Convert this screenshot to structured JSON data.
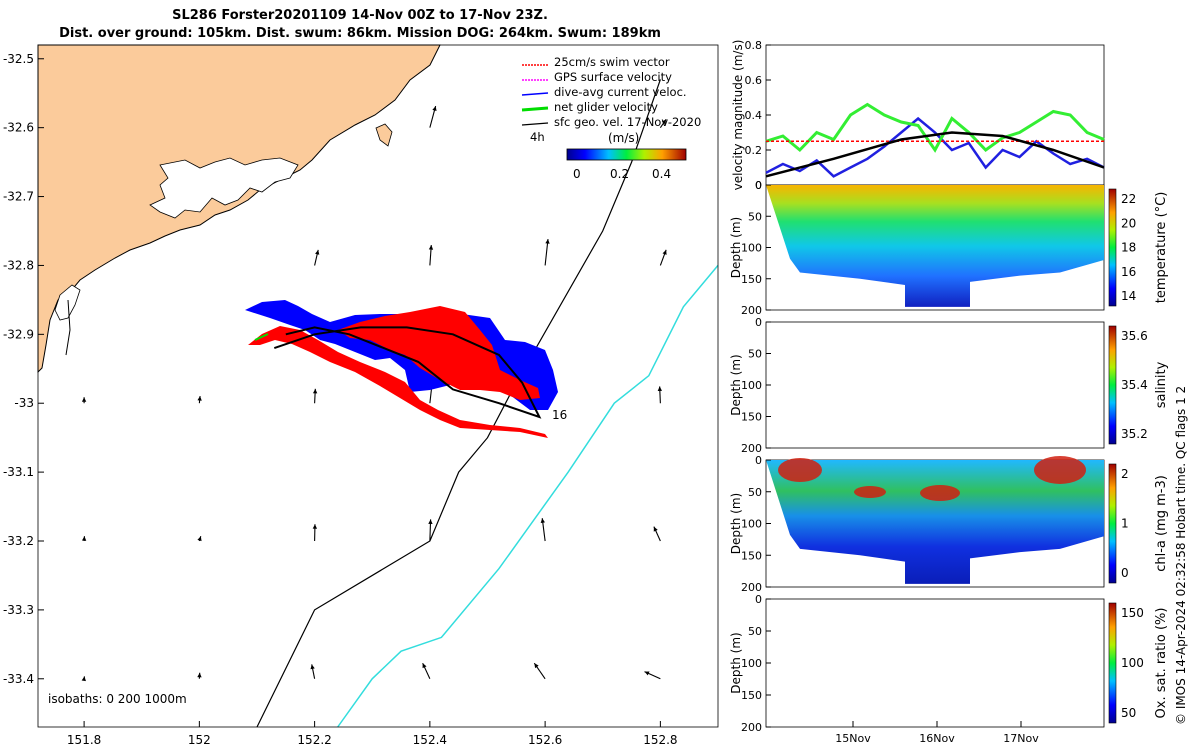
{
  "header": {
    "title_line1": "SL286 Forster20201109 14-Nov 00Z to 17-Nov 23Z.",
    "title_line2": "Dist. over ground: 105km. Dist. swum: 86km. Mission DOG: 264km. Swum: 189km"
  },
  "map": {
    "colors": {
      "land": "#fbcb9b",
      "swim": "#ff0000",
      "current": "#0000ff",
      "net": "#00dd00",
      "isobath_200": "#000000",
      "isobath_1000": "#33dddd"
    },
    "legend": [
      {
        "label": "25cm/s swim vector",
        "color": "#ff0000"
      },
      {
        "label": "GPS surface velocity",
        "color": "#ff00ff"
      },
      {
        "label": "dive-avg current veloc.",
        "color": "#0000ff"
      },
      {
        "label": "net glider velocity",
        "color": "#00dd00"
      },
      {
        "label": "sfc geo. vel. 17-Nov-2020",
        "color": "#000000"
      }
    ],
    "colorbar_title": "(m/s)",
    "colorbar_ticks": [
      "0",
      "0.2",
      "0.4"
    ],
    "time_label": "4h",
    "end_label": "16",
    "isobath_note": "isobaths: 0   200  1000m"
  },
  "panels": {
    "velocity_ylabel": "velocity magnitude (m/s)",
    "temp_cbar_label": "temperature (°C)",
    "sal_cbar_label": "salinity",
    "chl_cbar_label": "chl-a (mg m-3)",
    "oxy_cbar_label": "Ox. sat. ratio (%)",
    "depth_label": "Depth (m)",
    "time_ticks": [
      "15Nov",
      "16Nov",
      "17Nov"
    ],
    "temp_cbar_ticks": [
      "22",
      "20",
      "18",
      "16",
      "14"
    ],
    "sal_cbar_ticks": [
      "35.6",
      "35.4",
      "35.2"
    ],
    "chl_cbar_ticks": [
      "2",
      "1",
      "0"
    ],
    "oxy_cbar_ticks": [
      "150",
      "100",
      "50"
    ]
  },
  "footer_note": "© IMOS 14-Apr-2024 02:32:58 Hobart time. QC flags 1  2",
  "chart_data": [
    {
      "type": "scatter",
      "title": "SL286 Forster20201109 14-Nov 00Z to 17-Nov 23Z.",
      "xlabel": "",
      "ylabel": "",
      "xlim": [
        151.72,
        152.9
      ],
      "ylim": [
        -33.47,
        -32.48
      ],
      "x_ticks": [
        151.8,
        152,
        152.2,
        152.4,
        152.6,
        152.8
      ],
      "y_ticks": [
        -32.5,
        -32.6,
        -32.7,
        -32.8,
        -32.9,
        -33,
        -33.1,
        -33.2,
        -33.3,
        -33.4
      ],
      "series": [
        {
          "name": "net glider velocity",
          "x": [
            152.13,
            152.2,
            152.28,
            152.36,
            152.44,
            152.52,
            152.56,
            152.59,
            152.52,
            152.44,
            152.38,
            152.32,
            152.26,
            152.2,
            152.15
          ],
          "y": [
            -32.92,
            -32.9,
            -32.89,
            -32.89,
            -32.9,
            -32.93,
            -32.97,
            -33.02,
            -33.0,
            -32.98,
            -32.94,
            -32.92,
            -32.9,
            -32.89,
            -32.9
          ]
        }
      ],
      "isobath_200": {
        "x": [
          152.1,
          152.2,
          152.4,
          152.45,
          152.5,
          152.55,
          152.7,
          152.75,
          152.8
        ],
        "y": [
          -33.47,
          -33.3,
          -33.2,
          -33.1,
          -33.05,
          -32.97,
          -32.75,
          -32.65,
          -32.53
        ]
      },
      "isobath_1000": {
        "x": [
          152.24,
          152.3,
          152.35,
          152.42,
          152.52,
          152.58,
          152.64,
          152.72,
          152.78,
          152.84,
          152.9
        ],
        "y": [
          -33.47,
          -33.4,
          -33.36,
          -33.34,
          -33.24,
          -33.17,
          -33.1,
          -33.0,
          -32.96,
          -32.86,
          -32.8
        ]
      },
      "geo_arrows": [
        [
          151.8,
          -33.0,
          0,
          0.5
        ],
        [
          152.0,
          -33.0,
          0.1,
          0.6
        ],
        [
          152.2,
          -33.0,
          0.1,
          1.2
        ],
        [
          152.4,
          -33.0,
          0.3,
          1.6
        ],
        [
          152.6,
          -33.0,
          0.2,
          1.8
        ],
        [
          152.8,
          -33.0,
          -0.1,
          1.4
        ],
        [
          151.8,
          -33.2,
          0.05,
          0.4
        ],
        [
          152.0,
          -33.2,
          0.2,
          0.4
        ],
        [
          152.2,
          -33.2,
          0.05,
          1.4
        ],
        [
          152.4,
          -33.2,
          0.1,
          1.8
        ],
        [
          152.6,
          -33.2,
          -0.4,
          1.9
        ],
        [
          152.8,
          -33.2,
          -0.9,
          1.2
        ],
        [
          151.8,
          -33.4,
          0.05,
          0.2
        ],
        [
          152.0,
          -33.4,
          0.05,
          0.5
        ],
        [
          152.2,
          -33.4,
          -0.4,
          1.2
        ],
        [
          152.4,
          -33.4,
          -1.0,
          1.3
        ],
        [
          152.6,
          -33.4,
          -1.5,
          1.3
        ],
        [
          152.8,
          -33.4,
          -2.2,
          0.6
        ],
        [
          152.2,
          -32.8,
          0.5,
          1.3
        ],
        [
          152.4,
          -32.8,
          0.2,
          1.7
        ],
        [
          152.6,
          -32.8,
          0.4,
          2.2
        ],
        [
          152.8,
          -32.8,
          0.8,
          1.3
        ],
        [
          152.4,
          -32.6,
          0.8,
          1.8
        ],
        [
          152.8,
          -32.6,
          0.8,
          0.7
        ]
      ]
    },
    {
      "type": "line",
      "ylabel": "velocity magnitude (m/s)",
      "ylim": [
        0,
        0.8
      ],
      "y_ticks": [
        0,
        0.2,
        0.4,
        0.6,
        0.8
      ],
      "series": [
        {
          "name": "dive-avg current veloc.",
          "x": [
            0,
            0.05,
            0.1,
            0.15,
            0.2,
            0.25,
            0.3,
            0.35,
            0.4,
            0.45,
            0.5,
            0.55,
            0.6,
            0.65,
            0.7,
            0.75,
            0.8,
            0.85,
            0.9,
            0.95,
            1.0
          ],
          "y": [
            0.07,
            0.12,
            0.08,
            0.14,
            0.05,
            0.1,
            0.15,
            0.22,
            0.3,
            0.38,
            0.3,
            0.2,
            0.24,
            0.1,
            0.2,
            0.16,
            0.25,
            0.18,
            0.12,
            0.15,
            0.1
          ]
        },
        {
          "name": "net glider velocity",
          "x": [
            0,
            0.05,
            0.1,
            0.15,
            0.2,
            0.25,
            0.3,
            0.35,
            0.4,
            0.45,
            0.5,
            0.55,
            0.6,
            0.65,
            0.7,
            0.75,
            0.8,
            0.85,
            0.9,
            0.95,
            1.0
          ],
          "y": [
            0.25,
            0.28,
            0.2,
            0.3,
            0.26,
            0.4,
            0.46,
            0.4,
            0.36,
            0.34,
            0.2,
            0.38,
            0.3,
            0.2,
            0.27,
            0.3,
            0.36,
            0.42,
            0.4,
            0.3,
            0.26
          ]
        },
        {
          "name": "25cm/s swim vector",
          "x": [
            0,
            1
          ],
          "y": [
            0.25,
            0.25
          ]
        },
        {
          "name": "sfc geo. vel. 17-Nov-2020",
          "x": [
            0,
            0.2,
            0.4,
            0.55,
            0.7,
            0.85,
            1.0
          ],
          "y": [
            0.05,
            0.15,
            0.26,
            0.3,
            0.28,
            0.2,
            0.1
          ]
        }
      ]
    }
  ]
}
